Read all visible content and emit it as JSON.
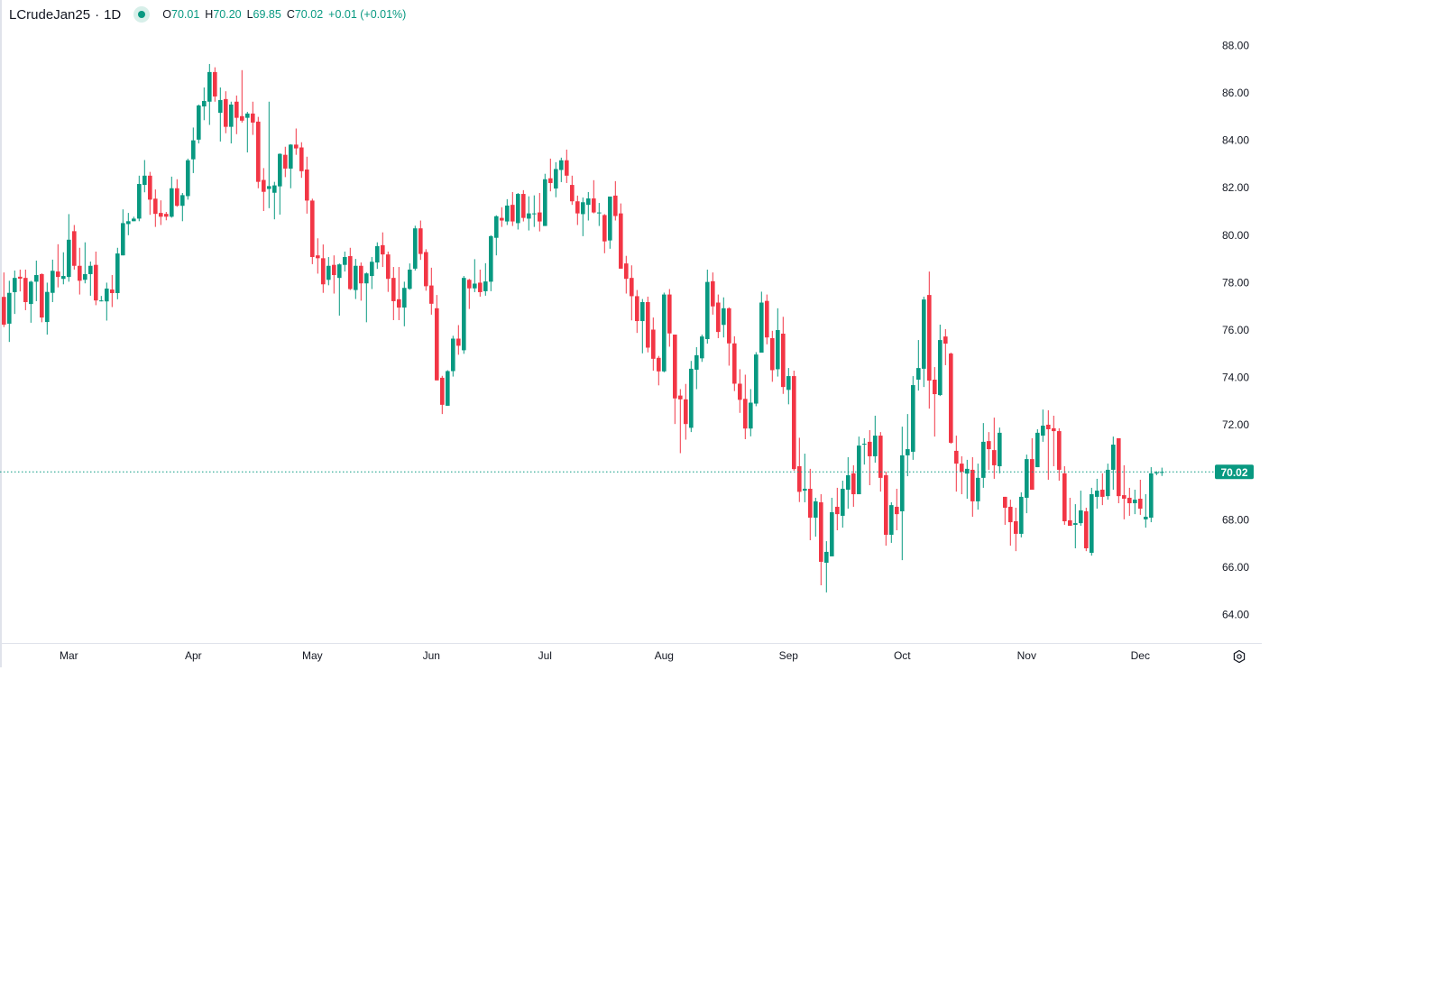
{
  "header": {
    "symbol": "LCrudeJan25",
    "separator": "·",
    "interval": "1D",
    "status_icon": "market-open-dot",
    "o_label": "O",
    "o": "70.01",
    "h_label": "H",
    "h": "70.20",
    "l_label": "L",
    "l": "69.85",
    "c_label": "C",
    "c": "70.02",
    "change": "+0.01 (+0.01%)"
  },
  "colors": {
    "up": "#089981",
    "down": "#f23645",
    "text": "#131722",
    "axis_line": "#e0e3eb",
    "last_price_line": "#089981"
  },
  "icons": {
    "settings": "gear-icon"
  },
  "chart_data": {
    "type": "candlestick",
    "ylim": [
      62.8,
      89.9
    ],
    "grid": false,
    "last_price": "70.02",
    "last_price_value": 70.02,
    "y_ticks": [
      "88.00",
      "86.00",
      "84.00",
      "82.00",
      "80.00",
      "78.00",
      "76.00",
      "74.00",
      "72.00",
      "68.00",
      "66.00",
      "64.00"
    ],
    "x_ticks": [
      {
        "label": "Mar",
        "bar": 13
      },
      {
        "label": "Apr",
        "bar": 36
      },
      {
        "label": "May",
        "bar": 58
      },
      {
        "label": "Jun",
        "bar": 80
      },
      {
        "label": "Jul",
        "bar": 101
      },
      {
        "label": "Aug",
        "bar": 123
      },
      {
        "label": "Sep",
        "bar": 146
      },
      {
        "label": "Oct",
        "bar": 167
      },
      {
        "label": "Nov",
        "bar": 190
      },
      {
        "label": "Dec",
        "bar": 211
      }
    ],
    "candle_format": [
      "open",
      "high",
      "low",
      "close"
    ],
    "candles": [
      [
        77.4,
        78.43,
        76.13,
        76.23
      ],
      [
        76.27,
        78.08,
        75.5,
        77.57
      ],
      [
        77.6,
        78.51,
        76.68,
        78.2
      ],
      [
        78.25,
        78.55,
        77.63,
        78.17
      ],
      [
        78.2,
        78.55,
        76.84,
        77.18
      ],
      [
        77.1,
        78.08,
        76.31,
        78.04
      ],
      [
        78.04,
        78.93,
        77.22,
        78.32
      ],
      [
        78.36,
        78.39,
        76.33,
        76.53
      ],
      [
        76.34,
        78.0,
        75.81,
        77.61
      ],
      [
        77.57,
        78.97,
        77.18,
        78.5
      ],
      [
        78.47,
        79.62,
        77.8,
        78.24
      ],
      [
        78.16,
        79.28,
        77.93,
        78.28
      ],
      [
        78.24,
        80.89,
        78.04,
        79.81
      ],
      [
        80.17,
        80.43,
        78.55,
        78.71
      ],
      [
        78.71,
        79.47,
        77.5,
        78.08
      ],
      [
        78.12,
        79.7,
        77.97,
        78.36
      ],
      [
        78.36,
        78.89,
        77.45,
        78.71
      ],
      [
        78.75,
        79.31,
        77.05,
        77.25
      ],
      [
        77.23,
        77.44,
        77.21,
        77.25
      ],
      [
        77.21,
        78.0,
        76.4,
        77.75
      ],
      [
        77.71,
        78.32,
        76.97,
        77.56
      ],
      [
        77.56,
        79.47,
        77.3,
        79.23
      ],
      [
        79.15,
        81.09,
        79.15,
        80.51
      ],
      [
        80.47,
        80.94,
        80.0,
        80.59
      ],
      [
        80.59,
        80.78,
        80.59,
        80.7
      ],
      [
        80.7,
        82.51,
        80.59,
        82.16
      ],
      [
        82.12,
        83.17,
        81.81,
        82.51
      ],
      [
        82.51,
        82.67,
        80.86,
        81.5
      ],
      [
        81.54,
        81.93,
        80.35,
        80.9
      ],
      [
        80.94,
        81.47,
        80.43,
        80.78
      ],
      [
        80.9,
        80.98,
        80.63,
        80.78
      ],
      [
        80.78,
        82.47,
        80.74,
        81.98
      ],
      [
        81.98,
        82.36,
        81.2,
        81.24
      ],
      [
        81.24,
        81.78,
        80.59,
        81.69
      ],
      [
        81.65,
        83.23,
        81.5,
        83.16
      ],
      [
        83.2,
        84.54,
        82.62,
        84.0
      ],
      [
        84.03,
        85.51,
        83.87,
        85.47
      ],
      [
        85.43,
        86.23,
        84.85,
        85.66
      ],
      [
        85.63,
        87.22,
        84.65,
        86.88
      ],
      [
        86.88,
        87.08,
        85.63,
        85.85
      ],
      [
        85.16,
        86.23,
        83.95,
        85.7
      ],
      [
        85.74,
        86.07,
        84.3,
        84.57
      ],
      [
        84.57,
        85.63,
        83.87,
        85.51
      ],
      [
        85.63,
        85.89,
        84.26,
        84.95
      ],
      [
        85.02,
        86.96,
        84.75,
        84.83
      ],
      [
        84.95,
        85.2,
        83.49,
        85.13
      ],
      [
        85.13,
        85.63,
        84.23,
        84.75
      ],
      [
        84.79,
        84.99,
        81.98,
        82.25
      ],
      [
        82.33,
        82.83,
        81.02,
        81.83
      ],
      [
        81.95,
        85.63,
        81.14,
        82.07
      ],
      [
        81.79,
        82.25,
        80.67,
        82.1
      ],
      [
        82.06,
        83.45,
        80.87,
        83.43
      ],
      [
        83.39,
        83.73,
        82.45,
        82.81
      ],
      [
        82.81,
        83.84,
        81.98,
        83.82
      ],
      [
        83.82,
        84.5,
        83.39,
        83.66
      ],
      [
        83.7,
        83.92,
        82.42,
        82.7
      ],
      [
        82.77,
        83.31,
        80.91,
        81.46
      ],
      [
        81.46,
        81.54,
        78.78,
        79.08
      ],
      [
        79.15,
        79.87,
        78.38,
        79.03
      ],
      [
        79.03,
        79.61,
        77.57,
        77.93
      ],
      [
        78.12,
        79.08,
        77.89,
        78.71
      ],
      [
        78.75,
        79.15,
        77.54,
        78.32
      ],
      [
        78.2,
        78.81,
        76.61,
        78.77
      ],
      [
        78.75,
        79.31,
        78.47,
        79.08
      ],
      [
        79.12,
        79.47,
        77.69,
        77.73
      ],
      [
        77.69,
        79.0,
        77.31,
        78.71
      ],
      [
        78.71,
        78.85,
        77.24,
        77.97
      ],
      [
        77.97,
        78.43,
        76.33,
        78.39
      ],
      [
        78.28,
        79.08,
        77.73,
        78.88
      ],
      [
        78.85,
        79.7,
        78.58,
        79.54
      ],
      [
        79.58,
        80.12,
        78.66,
        79.19
      ],
      [
        79.19,
        79.31,
        77.61,
        78.16
      ],
      [
        78.2,
        78.66,
        76.42,
        77.22
      ],
      [
        77.3,
        78.66,
        76.42,
        76.95
      ],
      [
        76.95,
        78.04,
        76.16,
        77.78
      ],
      [
        77.74,
        78.81,
        77.7,
        78.55
      ],
      [
        78.59,
        80.4,
        78.51,
        80.29
      ],
      [
        80.29,
        80.62,
        78.96,
        79.21
      ],
      [
        79.29,
        79.41,
        77.66,
        77.85
      ],
      [
        77.88,
        78.63,
        76.65,
        77.11
      ],
      [
        76.92,
        77.48,
        73.88,
        73.88
      ],
      [
        73.99,
        74.07,
        72.46,
        72.85
      ],
      [
        72.81,
        74.31,
        72.81,
        74.27
      ],
      [
        74.27,
        75.76,
        74.04,
        75.64
      ],
      [
        75.64,
        76.21,
        74.96,
        75.34
      ],
      [
        75.15,
        78.28,
        75.0,
        78.2
      ],
      [
        78.12,
        78.16,
        76.89,
        77.76
      ],
      [
        77.76,
        78.99,
        77.6,
        77.96
      ],
      [
        78.0,
        78.55,
        77.41,
        77.6
      ],
      [
        77.64,
        78.82,
        77.45,
        78.05
      ],
      [
        78.04,
        80.0,
        77.64,
        79.96
      ],
      [
        79.89,
        80.84,
        79.15,
        80.8
      ],
      [
        80.73,
        81.18,
        80.35,
        80.62
      ],
      [
        80.58,
        81.52,
        80.43,
        81.25
      ],
      [
        81.28,
        81.82,
        80.39,
        80.58
      ],
      [
        80.51,
        81.78,
        80.24,
        81.74
      ],
      [
        81.74,
        81.9,
        80.58,
        80.73
      ],
      [
        80.7,
        81.64,
        80.2,
        80.92
      ],
      [
        80.89,
        81.68,
        80.35,
        80.92
      ],
      [
        80.96,
        81.78,
        80.16,
        80.58
      ],
      [
        80.39,
        82.59,
        80.39,
        82.36
      ],
      [
        82.4,
        83.23,
        81.85,
        82.2
      ],
      [
        81.97,
        83.08,
        81.6,
        82.79
      ],
      [
        82.75,
        83.27,
        82.24,
        83.16
      ],
      [
        83.16,
        83.61,
        82.2,
        82.51
      ],
      [
        82.12,
        82.51,
        81.28,
        81.43
      ],
      [
        81.43,
        81.67,
        80.43,
        80.92
      ],
      [
        80.89,
        81.59,
        79.96,
        81.39
      ],
      [
        81.28,
        81.82,
        80.62,
        81.55
      ],
      [
        81.55,
        82.32,
        80.92,
        80.96
      ],
      [
        80.92,
        81.36,
        80.39,
        80.96
      ],
      [
        80.85,
        80.89,
        79.24,
        79.74
      ],
      [
        79.78,
        81.63,
        79.43,
        81.63
      ],
      [
        81.67,
        82.28,
        80.62,
        80.81
      ],
      [
        80.92,
        81.34,
        78.59,
        78.59
      ],
      [
        78.81,
        79.13,
        77.54,
        78.16
      ],
      [
        78.2,
        78.73,
        76.41,
        77.43
      ],
      [
        77.43,
        77.69,
        75.88,
        76.38
      ],
      [
        76.38,
        77.31,
        75.02,
        77.18
      ],
      [
        77.18,
        77.41,
        75.06,
        75.26
      ],
      [
        76.02,
        76.53,
        74.29,
        74.79
      ],
      [
        74.83,
        74.91,
        73.67,
        74.26
      ],
      [
        74.26,
        77.58,
        74.22,
        77.5
      ],
      [
        77.5,
        77.73,
        75.3,
        75.86
      ],
      [
        75.81,
        75.81,
        72.04,
        73.12
      ],
      [
        73.24,
        73.51,
        70.81,
        73.08
      ],
      [
        73.08,
        73.73,
        71.38,
        72.04
      ],
      [
        71.88,
        74.7,
        71.7,
        74.37
      ],
      [
        74.33,
        75.28,
        73.51,
        74.94
      ],
      [
        74.81,
        75.81,
        74.66,
        75.73
      ],
      [
        75.62,
        78.55,
        75.43,
        78.03
      ],
      [
        78.06,
        78.43,
        76.65,
        77.0
      ],
      [
        77.16,
        77.5,
        75.66,
        75.92
      ],
      [
        76.22,
        77.38,
        75.69,
        76.92
      ],
      [
        76.92,
        76.96,
        74.5,
        75.44
      ],
      [
        75.44,
        75.74,
        73.43,
        73.74
      ],
      [
        73.74,
        74.35,
        72.51,
        73.06
      ],
      [
        73.1,
        74.12,
        71.4,
        71.85
      ],
      [
        71.85,
        73.51,
        71.52,
        72.94
      ],
      [
        72.9,
        75.07,
        72.79,
        74.97
      ],
      [
        75.05,
        77.62,
        75.05,
        77.16
      ],
      [
        77.23,
        77.5,
        75.4,
        75.69
      ],
      [
        75.66,
        75.97,
        73.82,
        74.31
      ],
      [
        74.35,
        76.92,
        74.04,
        76.0
      ],
      [
        75.85,
        76.56,
        73.31,
        73.6
      ],
      [
        73.48,
        74.4,
        72.87,
        74.06
      ],
      [
        74.06,
        74.29,
        70.07,
        70.14
      ],
      [
        70.26,
        71.46,
        68.75,
        69.18
      ],
      [
        69.23,
        70.79,
        68.74,
        69.31
      ],
      [
        69.31,
        70.15,
        67.14,
        68.09
      ],
      [
        68.09,
        68.93,
        67.29,
        68.78
      ],
      [
        68.74,
        69.08,
        65.24,
        66.23
      ],
      [
        66.19,
        67.1,
        64.94,
        66.65
      ],
      [
        66.46,
        68.93,
        66.46,
        68.32
      ],
      [
        68.55,
        69.35,
        67.56,
        68.24
      ],
      [
        68.17,
        69.65,
        67.67,
        69.31
      ],
      [
        69.27,
        70.64,
        68.47,
        69.88
      ],
      [
        69.96,
        70.3,
        68.55,
        69.08
      ],
      [
        69.08,
        71.51,
        69.08,
        71.13
      ],
      [
        71.19,
        71.44,
        70.33,
        71.21
      ],
      [
        71.29,
        71.78,
        69.46,
        70.68
      ],
      [
        70.68,
        72.39,
        70.41,
        71.55
      ],
      [
        71.55,
        71.7,
        69.19,
        69.77
      ],
      [
        69.88,
        70.03,
        66.91,
        67.37
      ],
      [
        67.37,
        68.74,
        67.03,
        68.62
      ],
      [
        68.55,
        69.31,
        67.56,
        68.24
      ],
      [
        68.36,
        71.93,
        66.3,
        70.72
      ],
      [
        70.72,
        72.46,
        69.84,
        70.98
      ],
      [
        70.87,
        74.06,
        70.53,
        73.68
      ],
      [
        73.91,
        75.58,
        73.45,
        74.4
      ],
      [
        74.37,
        77.41,
        73.6,
        77.29
      ],
      [
        77.48,
        78.47,
        72.69,
        73.87
      ],
      [
        73.91,
        74.44,
        71.51,
        73.3
      ],
      [
        73.26,
        76.23,
        73.22,
        75.58
      ],
      [
        75.73,
        76.04,
        74.52,
        75.43
      ],
      [
        75.01,
        75.05,
        71.21,
        71.25
      ],
      [
        70.91,
        71.55,
        69.19,
        70.37
      ],
      [
        70.37,
        70.68,
        69.08,
        70.03
      ],
      [
        69.95,
        70.53,
        68.89,
        70.15
      ],
      [
        70.11,
        70.64,
        68.13,
        68.78
      ],
      [
        68.78,
        70.37,
        68.43,
        69.77
      ],
      [
        69.77,
        72.08,
        69.35,
        71.29
      ],
      [
        71.32,
        71.7,
        70.11,
        70.98
      ],
      [
        70.94,
        72.31,
        69.73,
        70.3
      ],
      [
        70.26,
        71.89,
        69.96,
        71.67
      ],
      [
        68.97,
        68.97,
        67.79,
        68.51
      ],
      [
        68.55,
        68.85,
        66.91,
        67.9
      ],
      [
        67.94,
        68.51,
        66.68,
        67.41
      ],
      [
        67.41,
        69.16,
        67.26,
        68.97
      ],
      [
        68.93,
        70.75,
        68.28,
        70.56
      ],
      [
        70.56,
        71.44,
        69.27,
        69.27
      ],
      [
        70.22,
        71.82,
        70.22,
        71.67
      ],
      [
        71.55,
        72.65,
        71.29,
        71.97
      ],
      [
        72.01,
        72.62,
        69.69,
        71.82
      ],
      [
        71.86,
        72.39,
        70.26,
        71.74
      ],
      [
        71.74,
        71.86,
        69.65,
        70.11
      ],
      [
        69.96,
        70.26,
        67.79,
        67.94
      ],
      [
        67.98,
        68.93,
        67.75,
        67.75
      ],
      [
        67.79,
        68.66,
        66.8,
        67.86
      ],
      [
        67.86,
        69.23,
        67.75,
        68.4
      ],
      [
        68.36,
        68.51,
        66.68,
        66.8
      ],
      [
        66.61,
        69.35,
        66.49,
        69.08
      ],
      [
        68.97,
        69.73,
        68.47,
        69.23
      ],
      [
        69.27,
        69.96,
        68.62,
        68.97
      ],
      [
        69.0,
        70.37,
        68.85,
        70.11
      ],
      [
        70.11,
        71.51,
        69.27,
        71.17
      ],
      [
        71.44,
        71.44,
        68.7,
        69.0
      ],
      [
        69.04,
        70.3,
        68.02,
        68.89
      ],
      [
        68.93,
        69.35,
        68.17,
        68.7
      ],
      [
        68.7,
        69.27,
        68.24,
        68.85
      ],
      [
        68.89,
        69.69,
        68.21,
        68.47
      ],
      [
        68.02,
        69.08,
        67.67,
        68.13
      ],
      [
        68.09,
        70.22,
        67.9,
        69.96
      ],
      [
        69.96,
        70.05,
        69.88,
        70.0
      ],
      [
        70.01,
        70.2,
        69.85,
        70.02
      ]
    ]
  }
}
